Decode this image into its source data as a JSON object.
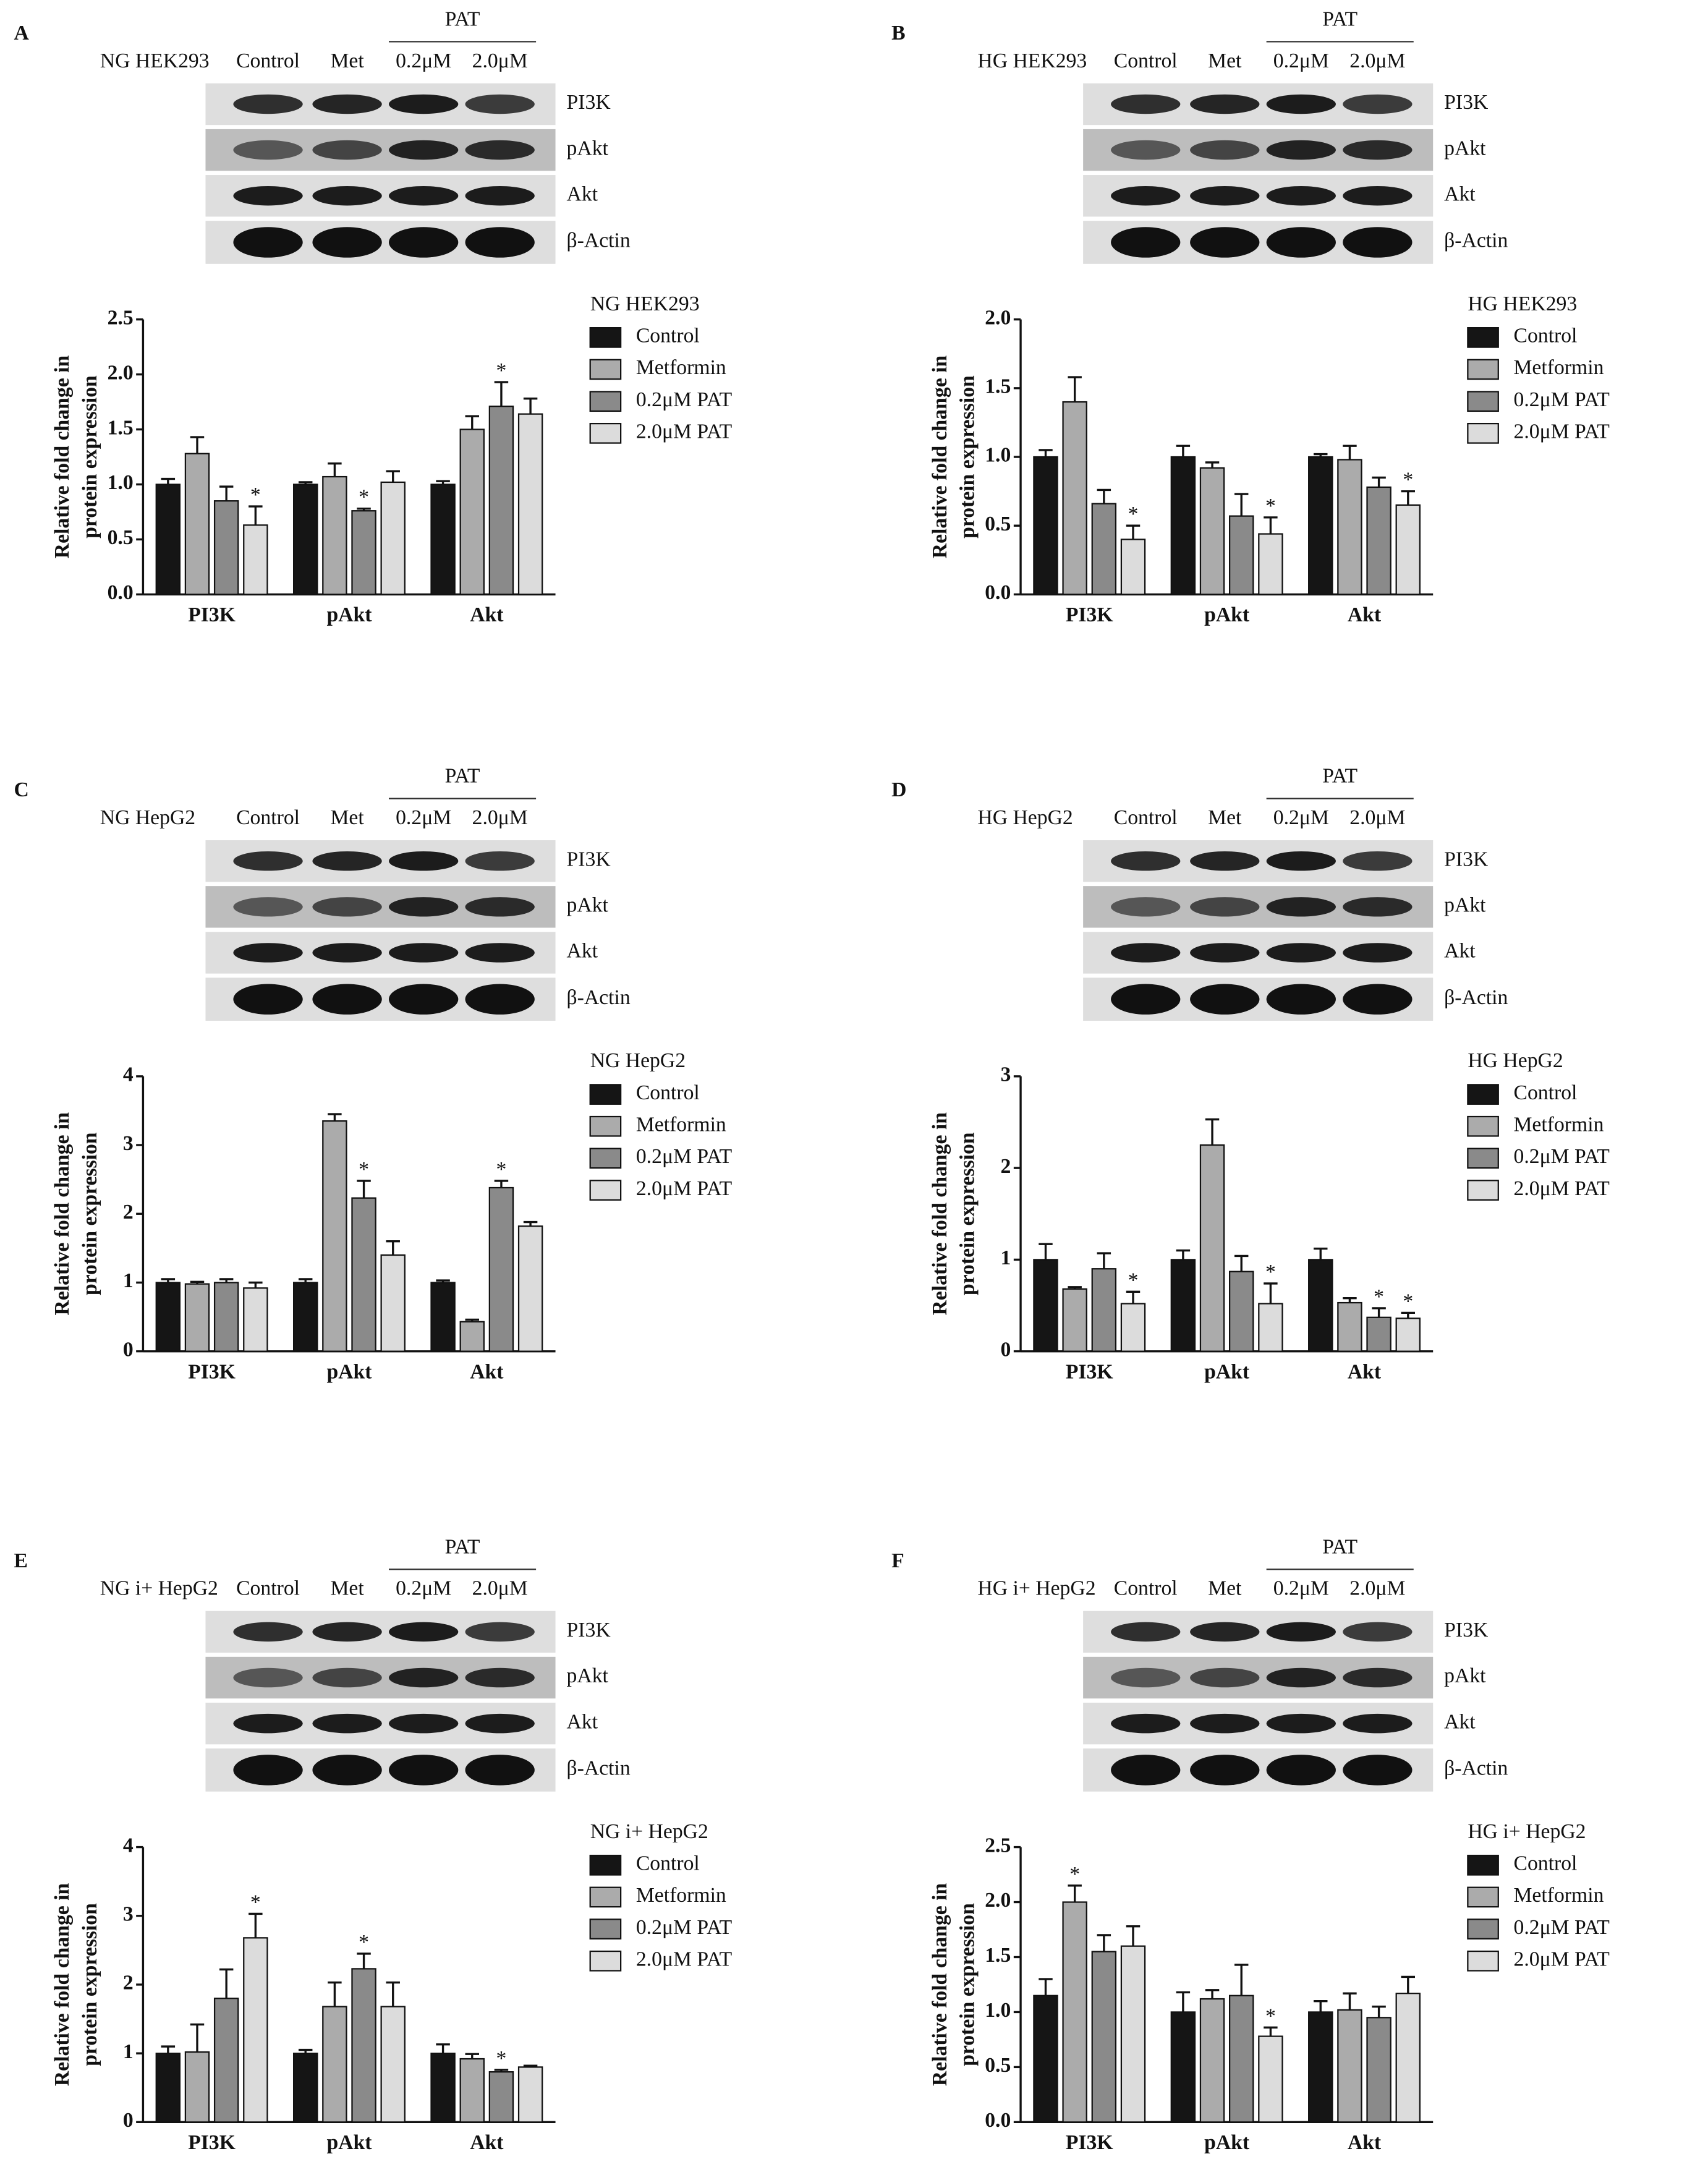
{
  "blots": [
    {
      "panel": "A",
      "cell_line": "NG HEK293",
      "lanes": [
        "Control",
        "Met",
        "0.2μM",
        "2.0μM"
      ],
      "group": "PAT",
      "bands": [
        "PI3K",
        "pAkt",
        "Akt",
        "β-Actin"
      ]
    },
    {
      "panel": "B",
      "cell_line": "HG HEK293",
      "lanes": [
        "Control",
        "Met",
        "0.2μM",
        "2.0μM"
      ],
      "group": "PAT",
      "bands": [
        "PI3K",
        "pAkt",
        "Akt",
        "β-Actin"
      ]
    },
    {
      "panel": "C",
      "cell_line": "NG HepG2",
      "lanes": [
        "Control",
        "Met",
        "0.2μM",
        "2.0μM"
      ],
      "group": "PAT",
      "bands": [
        "PI3K",
        "pAkt",
        "Akt",
        "β-Actin"
      ]
    },
    {
      "panel": "D",
      "cell_line": "HG HepG2",
      "lanes": [
        "Control",
        "Met",
        "0.2μM",
        "2.0μM"
      ],
      "group": "PAT",
      "bands": [
        "PI3K",
        "pAkt",
        "Akt",
        "β-Actin"
      ]
    },
    {
      "panel": "E",
      "cell_line": "NG i+ HepG2",
      "lanes": [
        "Control",
        "Met",
        "0.2μM",
        "2.0μM"
      ],
      "group": "PAT",
      "bands": [
        "PI3K",
        "pAkt",
        "Akt",
        "β-Actin"
      ]
    },
    {
      "panel": "F",
      "cell_line": "HG i+ HepG2",
      "lanes": [
        "Control",
        "Met",
        "0.2μM",
        "2.0μM"
      ],
      "group": "PAT",
      "bands": [
        "PI3K",
        "pAkt",
        "Akt",
        "β-Actin"
      ]
    }
  ],
  "chart_data": [
    {
      "type": "bar",
      "title": "NG HEK293",
      "ylabel": [
        "Relative fold change in",
        "protein expression"
      ],
      "categories": [
        "PI3K",
        "pAkt",
        "Akt"
      ],
      "ylim": [
        0,
        2.5
      ],
      "yticks": [
        {
          "value": 0,
          "label": "0.0"
        },
        0.5,
        {
          "value": 1,
          "label": "1.0"
        },
        1.5,
        {
          "value": 2,
          "label": "2.0"
        },
        2.5
      ],
      "series": [
        {
          "name": "Control",
          "color": "#151515",
          "values": [
            1.0,
            1.0,
            1.0
          ],
          "errors": [
            0.05,
            0.02,
            0.03
          ],
          "significance": [
            null,
            null,
            null
          ]
        },
        {
          "name": "Metformin",
          "color": "#ababab",
          "values": [
            1.28,
            1.07,
            1.5
          ],
          "errors": [
            0.15,
            0.12,
            0.12
          ],
          "significance": [
            null,
            null,
            null
          ]
        },
        {
          "name": "0.2μM PAT",
          "color": "#8a8a8a",
          "values": [
            0.85,
            0.76,
            1.71
          ],
          "errors": [
            0.13,
            0.02,
            0.22
          ],
          "significance": [
            null,
            "*",
            "*"
          ]
        },
        {
          "name": "2.0μM PAT",
          "color": "#dcdcdc",
          "values": [
            0.63,
            1.02,
            1.64
          ],
          "errors": [
            0.17,
            0.1,
            0.14
          ],
          "significance": [
            "*",
            null,
            null
          ]
        }
      ]
    },
    {
      "type": "bar",
      "title": "HG HEK293",
      "ylabel": [
        "Relative fold change in",
        "protein expression"
      ],
      "categories": [
        "PI3K",
        "pAkt",
        "Akt"
      ],
      "ylim": [
        0,
        2.0
      ],
      "yticks": [
        {
          "value": 0,
          "label": "0.0"
        },
        0.5,
        {
          "value": 1,
          "label": "1.0"
        },
        1.5,
        {
          "value": 2,
          "label": "2.0"
        }
      ],
      "series": [
        {
          "name": "Control",
          "color": "#151515",
          "values": [
            1.0,
            1.0,
            1.0
          ],
          "errors": [
            0.05,
            0.08,
            0.02
          ],
          "significance": [
            null,
            null,
            null
          ]
        },
        {
          "name": "Metformin",
          "color": "#ababab",
          "values": [
            1.4,
            0.92,
            0.98
          ],
          "errors": [
            0.18,
            0.04,
            0.1
          ],
          "significance": [
            null,
            null,
            null
          ]
        },
        {
          "name": "0.2μM PAT",
          "color": "#8a8a8a",
          "values": [
            0.66,
            0.57,
            0.78
          ],
          "errors": [
            0.1,
            0.16,
            0.07
          ],
          "significance": [
            null,
            null,
            null
          ]
        },
        {
          "name": "2.0μM PAT",
          "color": "#dcdcdc",
          "values": [
            0.4,
            0.44,
            0.65
          ],
          "errors": [
            0.1,
            0.12,
            0.1
          ],
          "significance": [
            "*",
            "*",
            "*"
          ]
        }
      ]
    },
    {
      "type": "bar",
      "title": "NG HepG2",
      "ylabel": [
        "Relative fold change in",
        "protein expression"
      ],
      "categories": [
        "PI3K",
        "pAkt",
        "Akt"
      ],
      "ylim": [
        0,
        4
      ],
      "yticks": [
        0,
        1,
        2,
        3,
        4
      ],
      "series": [
        {
          "name": "Control",
          "color": "#151515",
          "values": [
            1.0,
            1.0,
            1.0
          ],
          "errors": [
            0.05,
            0.05,
            0.03
          ],
          "significance": [
            null,
            null,
            null
          ]
        },
        {
          "name": "Metformin",
          "color": "#ababab",
          "values": [
            0.98,
            3.35,
            0.43
          ],
          "errors": [
            0.03,
            0.1,
            0.03
          ],
          "significance": [
            null,
            null,
            null
          ]
        },
        {
          "name": "0.2μM PAT",
          "color": "#8a8a8a",
          "values": [
            1.0,
            2.23,
            2.38
          ],
          "errors": [
            0.05,
            0.25,
            0.1
          ],
          "significance": [
            null,
            "*",
            "*"
          ]
        },
        {
          "name": "2.0μM PAT",
          "color": "#dcdcdc",
          "values": [
            0.92,
            1.4,
            1.82
          ],
          "errors": [
            0.08,
            0.2,
            0.06
          ],
          "significance": [
            null,
            null,
            null
          ]
        }
      ]
    },
    {
      "type": "bar",
      "title": "HG HepG2",
      "ylabel": [
        "Relative fold change in",
        "protein expression"
      ],
      "categories": [
        "PI3K",
        "pAkt",
        "Akt"
      ],
      "ylim": [
        0,
        3
      ],
      "yticks": [
        0,
        1,
        2,
        3
      ],
      "series": [
        {
          "name": "Control",
          "color": "#151515",
          "values": [
            1.0,
            1.0,
            1.0
          ],
          "errors": [
            0.17,
            0.1,
            0.12
          ],
          "significance": [
            null,
            null,
            null
          ]
        },
        {
          "name": "Metformin",
          "color": "#ababab",
          "values": [
            0.68,
            2.25,
            0.53
          ],
          "errors": [
            0.02,
            0.28,
            0.05
          ],
          "significance": [
            null,
            null,
            null
          ]
        },
        {
          "name": "0.2μM PAT",
          "color": "#8a8a8a",
          "values": [
            0.9,
            0.87,
            0.37
          ],
          "errors": [
            0.17,
            0.17,
            0.1
          ],
          "significance": [
            null,
            null,
            "*"
          ]
        },
        {
          "name": "2.0μM PAT",
          "color": "#dcdcdc",
          "values": [
            0.52,
            0.52,
            0.36
          ],
          "errors": [
            0.13,
            0.22,
            0.06
          ],
          "significance": [
            "*",
            "*",
            "*"
          ]
        }
      ]
    },
    {
      "type": "bar",
      "title": "NG i+ HepG2",
      "ylabel": [
        "Relative fold change in",
        "protein expression"
      ],
      "categories": [
        "PI3K",
        "pAkt",
        "Akt"
      ],
      "ylim": [
        0,
        4
      ],
      "yticks": [
        0,
        1,
        2,
        3,
        4
      ],
      "series": [
        {
          "name": "Control",
          "color": "#151515",
          "values": [
            1.0,
            1.0,
            1.0
          ],
          "errors": [
            0.1,
            0.05,
            0.13
          ],
          "significance": [
            null,
            null,
            null
          ]
        },
        {
          "name": "Metformin",
          "color": "#ababab",
          "values": [
            1.02,
            1.68,
            0.92
          ],
          "errors": [
            0.4,
            0.35,
            0.07
          ],
          "significance": [
            null,
            null,
            null
          ]
        },
        {
          "name": "0.2μM PAT",
          "color": "#8a8a8a",
          "values": [
            1.8,
            2.23,
            0.73
          ],
          "errors": [
            0.42,
            0.22,
            0.03
          ],
          "significance": [
            null,
            "*",
            "*"
          ]
        },
        {
          "name": "2.0μM PAT",
          "color": "#dcdcdc",
          "values": [
            2.68,
            1.68,
            0.8
          ],
          "errors": [
            0.35,
            0.35,
            0.02
          ],
          "significance": [
            "*",
            null,
            null
          ]
        }
      ]
    },
    {
      "type": "bar",
      "title": "HG i+ HepG2",
      "ylabel": [
        "Relative fold change in",
        "protein expression"
      ],
      "categories": [
        "PI3K",
        "pAkt",
        "Akt"
      ],
      "ylim": [
        0,
        2.5
      ],
      "yticks": [
        {
          "value": 0,
          "label": "0.0"
        },
        0.5,
        {
          "value": 1,
          "label": "1.0"
        },
        1.5,
        {
          "value": 2,
          "label": "2.0"
        },
        2.5
      ],
      "series": [
        {
          "name": "Control",
          "color": "#151515",
          "values": [
            1.15,
            1.0,
            1.0
          ],
          "errors": [
            0.15,
            0.18,
            0.1
          ],
          "significance": [
            null,
            null,
            null
          ]
        },
        {
          "name": "Metformin",
          "color": "#ababab",
          "values": [
            2.0,
            1.12,
            1.02
          ],
          "errors": [
            0.15,
            0.08,
            0.15
          ],
          "significance": [
            "*",
            null,
            null
          ]
        },
        {
          "name": "0.2μM PAT",
          "color": "#8a8a8a",
          "values": [
            1.55,
            1.15,
            0.95
          ],
          "errors": [
            0.15,
            0.28,
            0.1
          ],
          "significance": [
            null,
            null,
            null
          ]
        },
        {
          "name": "2.0μM PAT",
          "color": "#dcdcdc",
          "values": [
            1.6,
            0.78,
            1.17
          ],
          "errors": [
            0.18,
            0.08,
            0.15
          ],
          "significance": [
            null,
            "*",
            null
          ]
        }
      ]
    }
  ]
}
